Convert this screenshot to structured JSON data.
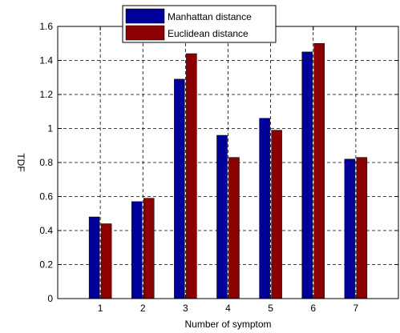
{
  "chart_data": {
    "type": "bar",
    "categories": [
      "1",
      "2",
      "3",
      "4",
      "5",
      "6",
      "7"
    ],
    "series": [
      {
        "name": "Manhattan distance",
        "values": [
          0.48,
          0.57,
          1.29,
          0.96,
          1.06,
          1.45,
          0.82
        ],
        "color": "#000099"
      },
      {
        "name": "Euclidean distance",
        "values": [
          0.44,
          0.59,
          1.44,
          0.83,
          0.99,
          1.5,
          0.83
        ],
        "color": "#8b0000"
      }
    ],
    "title": "",
    "xlabel": "Number of symptom",
    "ylabel": "TDF",
    "xlim": [
      0,
      8
    ],
    "ylim": [
      0,
      1.6
    ],
    "yticks": [
      "0",
      "0.2",
      "0.4",
      "0.6",
      "0.8",
      "1",
      "1.2",
      "1.4",
      "1.6"
    ],
    "grid": true,
    "legend_position": "top"
  }
}
